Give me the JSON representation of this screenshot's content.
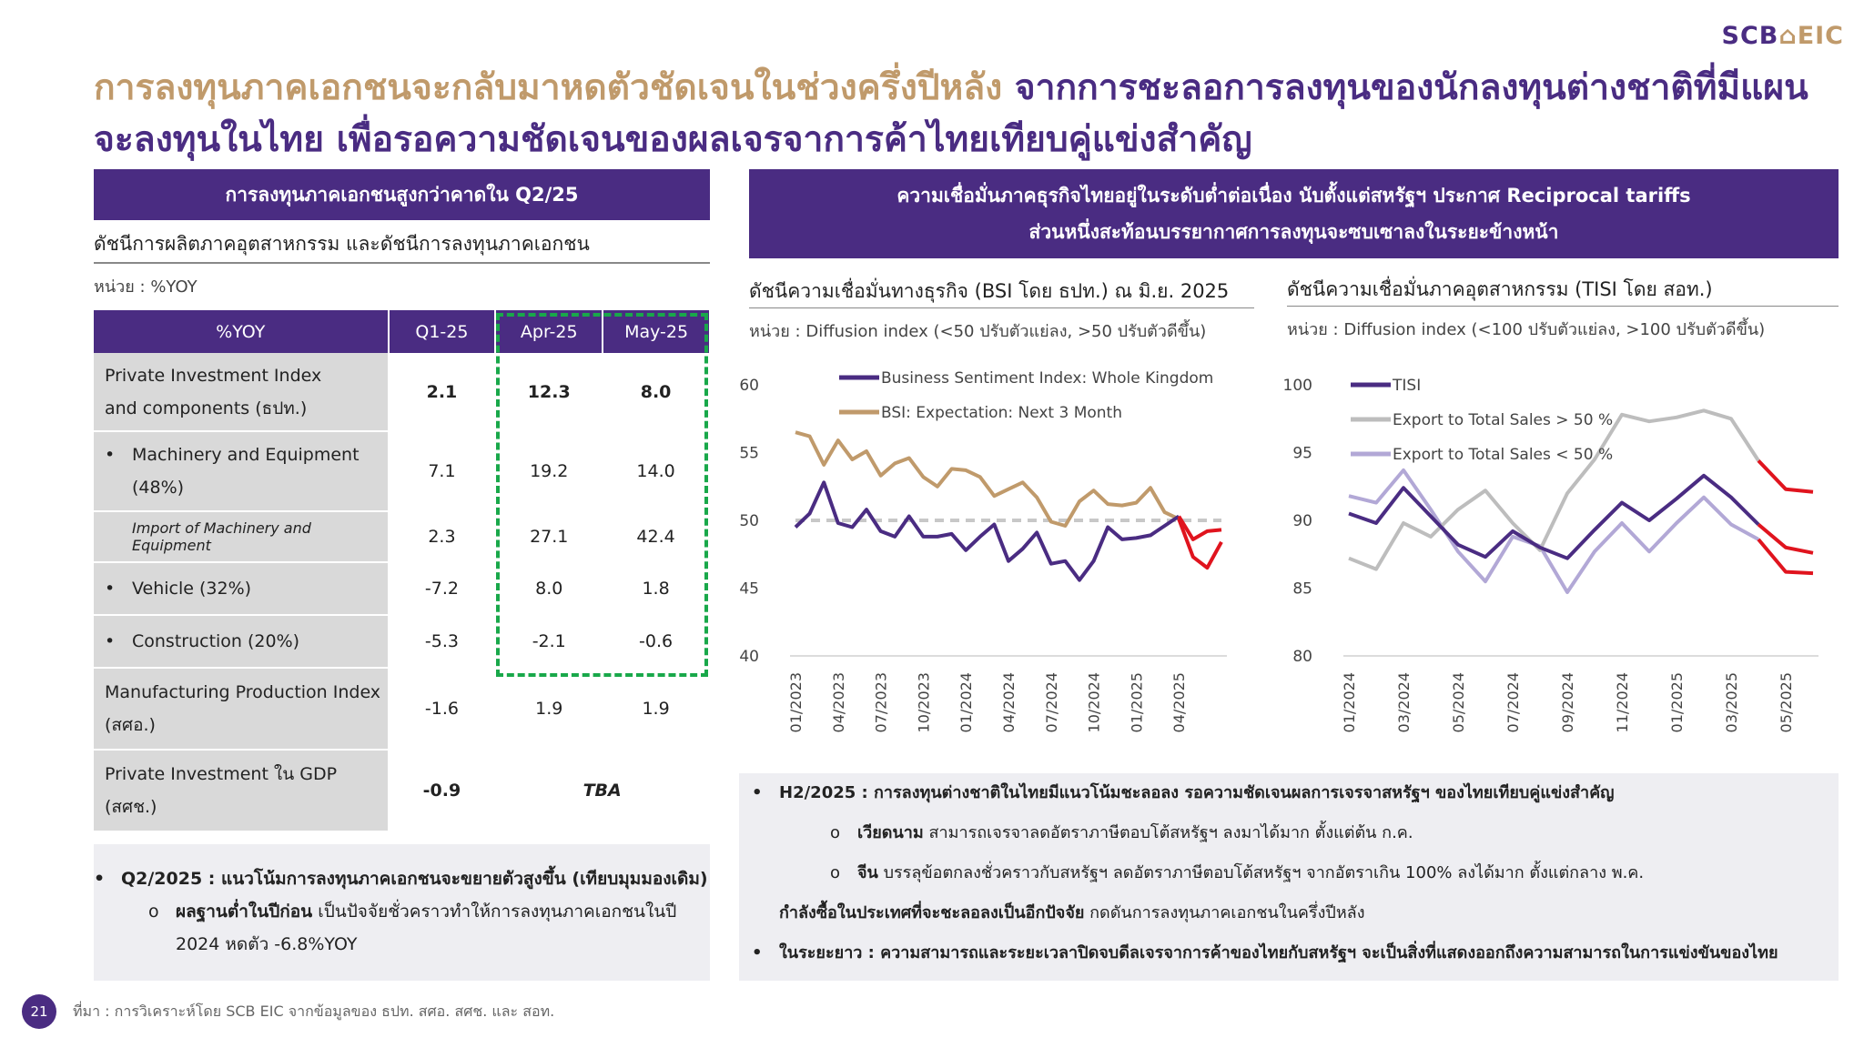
{
  "logo": {
    "scb": "SCB",
    "eic": "EIC"
  },
  "title": {
    "line1_gold": "การลงทุนภาคเอกชนจะกลับมาหดตัวชัดเจนในช่วงครึ่งปีหลัง",
    "line1_purple": "จากการชะลอการลงทุนของนักลงทุนต่างชาติที่มีแผน",
    "line2_purple": "จะลงทุนในไทย เพื่อรอความชัดเจนของผลเจรจาการค้าไทยเทียบคู่แข่งสำคัญ"
  },
  "left": {
    "header": "การลงทุนภาคเอกชนสูงกว่าคาดใน Q2/25",
    "subheader": "ดัชนีการผลิตภาคอุตสาหกรรม และดัชนีการลงทุนภาคเอกชน",
    "unit": "หน่วย : %YOY",
    "table": {
      "headers": [
        "%YOY",
        "Q1-25",
        "Apr-25",
        "May-25"
      ],
      "rows": [
        {
          "label1": "Private Investment Index",
          "label2": "and components (ธปท.)",
          "q1": "2.1",
          "apr": "12.3",
          "may": "8.0"
        },
        {
          "label1": "Machinery and Equipment",
          "label2": "(48%)",
          "q1": "7.1",
          "apr": "19.2",
          "may": "14.0"
        },
        {
          "label1": "Import of Machinery and Equipment",
          "q1": "2.3",
          "apr": "27.1",
          "may": "42.4"
        },
        {
          "label1": "Vehicle (32%)",
          "q1": "-7.2",
          "apr": "8.0",
          "may": "1.8"
        },
        {
          "label1": "Construction (20%)",
          "q1": "-5.3",
          "apr": "-2.1",
          "may": "-0.6"
        },
        {
          "label1": "Manufacturing Production Index",
          "label2": "(สศอ.)",
          "q1": "-1.6",
          "apr": "1.9",
          "may": "1.9"
        },
        {
          "label1": "Private Investment ใน GDP",
          "label2": "(สศช.)",
          "q1": "-0.9",
          "tba": "TBA"
        }
      ]
    },
    "note": {
      "bullet1": "Q2/2025 : แนวโน้มการลงทุนภาคเอกชนจะขยายตัวสูงขึ้น (เทียบมุมมองเดิม)",
      "sub_bold": "ผลฐานต่ำในปีก่อน",
      "sub_text": " เป็นปัจจัยชั่วคราวทำให้การลงทุนภาคเอกชนในปี",
      "sub_text2": "2024 หดตัว -6.8%YOY"
    }
  },
  "right": {
    "header_line1": "ความเชื่อมั่นภาคธุรกิจไทยอยู่ในระดับต่ำต่อเนื่อง นับตั้งแต่สหรัฐฯ ประกาศ Reciprocal tariffs",
    "header_line2": "ส่วนหนึ่งสะท้อนบรรยากาศการลงทุนจะซบเซาลงในระยะข้างหน้า",
    "note": {
      "b1": "H2/2025 : การลงทุนต่างชาติในไทยมีแนวโน้มชะลอลง รอความชัดเจนผลการเจรจาสหรัฐฯ ของไทยเทียบคู่แข่งสำคัญ",
      "s1_bold": "เวียดนาม",
      "s1_text": " สามารถเจรจาลดอัตราภาษีตอบโต้สหรัฐฯ ลงมาได้มาก ตั้งแต่ต้น ก.ค.",
      "s2_bold": "จีน",
      "s2_text": " บรรลุข้อตกลงชั่วคราวกับสหรัฐฯ ลดอัตราภาษีตอบโต้สหรัฐฯ จากอัตราเกิน 100% ลงได้มาก ตั้งแต่กลาง พ.ค.",
      "line3_bold": "กำลังซื้อในประเทศที่จะชะลอลงเป็นอีกปัจจัย",
      "line3_text": " กดดันการลงทุนภาคเอกชนในครึ่งปีหลัง",
      "b2": "ในระยะยาว : ความสามารถและระยะเวลาปิดจบดีลเจรจาการค้าของไทยกับสหรัฐฯ จะเป็นสิ่งที่แสดงออกถึงความสามารถในการแข่งขันของไทย"
    }
  },
  "footer": {
    "page": "21",
    "source": "ที่มา : การวิเคราะห์โดย SCB EIC จากข้อมูลของ ธปท. สศอ. สศช. และ สอท."
  },
  "colors": {
    "purple": "#4a2c82",
    "gold": "#c09a6b",
    "red": "#e0141e",
    "lightpurple": "#b2a8d6",
    "gray": "#bdbdbd"
  },
  "chart_data": [
    {
      "type": "line",
      "title": "ดัชนีความเชื่อมั่นทางธุรกิจ (BSI โดย ธปท.) ณ มิ.ย. 2025",
      "unit": "หน่วย : Diffusion index (<50 ปรับตัวแย่ลง, >50 ปรับตัวดีขึ้น)",
      "ylim": [
        40,
        60
      ],
      "yticks": [
        "40",
        "45",
        "50",
        "55",
        "60"
      ],
      "xticks": [
        "01/2023",
        "04/2023",
        "07/2023",
        "10/2023",
        "01/2024",
        "04/2024",
        "07/2024",
        "10/2024",
        "01/2025",
        "04/2025"
      ],
      "x_start": "01/2023",
      "reference_line": 50,
      "forecast_from_index": 27,
      "series": [
        {
          "name": "Business Sentiment Index: Whole Kingdom",
          "color": "#4a2c82",
          "values": [
            49.5,
            50.5,
            52.8,
            49.8,
            49.5,
            50.8,
            49.2,
            48.8,
            50.3,
            48.8,
            48.8,
            49.0,
            47.8,
            48.8,
            49.7,
            47.0,
            47.9,
            49.1,
            46.8,
            47.0,
            45.6,
            47.0,
            49.5,
            48.6,
            48.7,
            48.9,
            49.6,
            50.3,
            48.6,
            49.2,
            49.3
          ]
        },
        {
          "name": "BSI: Expectation: Next 3 Month",
          "color": "#c09a6b",
          "values": [
            56.5,
            56.2,
            54.1,
            55.9,
            54.5,
            55.1,
            53.3,
            54.2,
            54.6,
            53.2,
            52.5,
            53.8,
            53.7,
            53.2,
            51.8,
            52.3,
            52.8,
            51.7,
            49.9,
            49.6,
            51.4,
            52.2,
            51.2,
            51.1,
            51.3,
            52.4,
            50.6,
            50.1,
            47.3,
            46.5,
            48.4
          ]
        }
      ]
    },
    {
      "type": "line",
      "title": "ดัชนีความเชื่อมั่นภาคอุตสาหกรรม (TISI โดย สอท.)",
      "unit": "หน่วย : Diffusion index (<100 ปรับตัวแย่ลง, >100 ปรับตัวดีขึ้น)",
      "ylim": [
        80,
        100
      ],
      "yticks": [
        "80",
        "85",
        "90",
        "95",
        "100"
      ],
      "xticks": [
        "01/2024",
        "03/2024",
        "05/2024",
        "07/2024",
        "09/2024",
        "11/2024",
        "01/2025",
        "03/2025",
        "05/2025"
      ],
      "x_start": "01/2024",
      "forecast_from_index": 15,
      "series": [
        {
          "name": "TISI",
          "color": "#4a2c82",
          "values": [
            90.5,
            89.8,
            92.4,
            90.3,
            88.2,
            87.3,
            89.2,
            88.0,
            87.2,
            89.3,
            91.3,
            90.0,
            91.6,
            93.3,
            91.7,
            89.7,
            88.0,
            87.6
          ]
        },
        {
          "name": "Export to Total Sales > 50 %",
          "color": "#bdbdbd",
          "values": [
            87.2,
            86.4,
            89.8,
            88.8,
            90.8,
            92.2,
            89.8,
            87.8,
            92.0,
            94.5,
            97.8,
            97.3,
            97.6,
            98.1,
            97.5,
            94.4,
            92.3,
            92.1
          ]
        },
        {
          "name": "Export to Total Sales < 50 %",
          "color": "#b2a8d6",
          "values": [
            91.8,
            91.3,
            93.7,
            90.8,
            87.7,
            85.5,
            88.8,
            88.1,
            84.7,
            87.7,
            89.8,
            87.7,
            89.8,
            91.7,
            89.7,
            88.6,
            86.2,
            86.1
          ]
        }
      ]
    }
  ]
}
